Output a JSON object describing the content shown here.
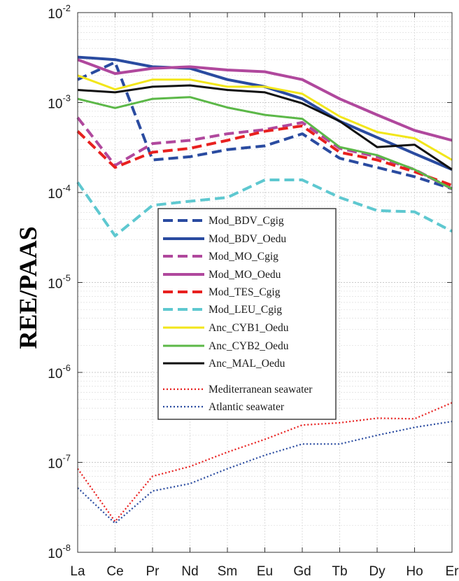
{
  "chart_data": {
    "type": "line",
    "xlabel": "",
    "ylabel": "REE/PAAS",
    "yscale": "log",
    "ylim": [
      1e-08,
      0.01
    ],
    "y_tick_labels": [
      {
        "base": "10",
        "exp": "-8",
        "value": 1e-08
      },
      {
        "base": "10",
        "exp": "-7",
        "value": 1e-07
      },
      {
        "base": "10",
        "exp": "-6",
        "value": 1e-06
      },
      {
        "base": "10",
        "exp": "-5",
        "value": 1e-05
      },
      {
        "base": "10",
        "exp": "-4",
        "value": 0.0001
      },
      {
        "base": "10",
        "exp": "-3",
        "value": 0.001
      },
      {
        "base": "10",
        "exp": "-2",
        "value": 0.01
      }
    ],
    "categories": [
      "La",
      "Ce",
      "Pr",
      "Nd",
      "Sm",
      "Eu",
      "Gd",
      "Tb",
      "Dy",
      "Ho",
      "Er"
    ],
    "grid": true,
    "legend_position": "center",
    "series": [
      {
        "name": "Mod_BDV_Cgig",
        "color": "#2a4ba0",
        "style": "dashed",
        "width": 4,
        "values": [
          0.0018,
          0.0028,
          0.00023,
          0.00025,
          0.0003,
          0.00033,
          0.00045,
          0.00024,
          0.00019,
          0.00015,
          0.00011
        ]
      },
      {
        "name": "Mod_BDV_Oedu",
        "color": "#2a4ba0",
        "style": "solid",
        "width": 4,
        "values": [
          0.0032,
          0.003,
          0.0025,
          0.0024,
          0.0018,
          0.0015,
          0.0011,
          0.00062,
          0.00041,
          0.00027,
          0.00018
        ]
      },
      {
        "name": "Mod_MO_Cgig",
        "color": "#b0489d",
        "style": "dashed",
        "width": 4,
        "values": [
          0.00068,
          0.0002,
          0.00035,
          0.00038,
          0.00045,
          0.0005,
          0.0006,
          0.00031,
          0.00025,
          0.00018,
          0.00011
        ]
      },
      {
        "name": "Mod_MO_Oedu",
        "color": "#b0489d",
        "style": "solid",
        "width": 4,
        "values": [
          0.003,
          0.0021,
          0.0024,
          0.0025,
          0.0023,
          0.0022,
          0.0018,
          0.0011,
          0.00073,
          0.00049,
          0.00038
        ]
      },
      {
        "name": "Mod_TES_Cgig",
        "color": "#e8201f",
        "style": "dashed",
        "width": 4,
        "values": [
          0.00048,
          0.00019,
          0.00028,
          0.00031,
          0.00038,
          0.00048,
          0.00055,
          0.00028,
          0.00023,
          0.00017,
          0.00012
        ]
      },
      {
        "name": "Mod_LEU_Cgig",
        "color": "#5ec8d0",
        "style": "dashed",
        "width": 4,
        "values": [
          0.00013,
          3.3e-05,
          7.2e-05,
          8e-05,
          8.8e-05,
          0.000138,
          0.000138,
          8.8e-05,
          6.3e-05,
          6.1e-05,
          3.7e-05
        ]
      },
      {
        "name": "Anc_CYB1_Oedu",
        "color": "#f2e61a",
        "style": "solid",
        "width": 3,
        "values": [
          0.002,
          0.0014,
          0.0018,
          0.0018,
          0.0015,
          0.0015,
          0.00125,
          0.0007,
          0.00047,
          0.0004,
          0.00023
        ]
      },
      {
        "name": "Anc_CYB2_Oedu",
        "color": "#5cb848",
        "style": "solid",
        "width": 3,
        "values": [
          0.0011,
          0.00087,
          0.0011,
          0.00115,
          0.00088,
          0.00073,
          0.00066,
          0.00032,
          0.00026,
          0.00018,
          0.00011
        ]
      },
      {
        "name": "Anc_MAL_Oedu",
        "color": "#111111",
        "style": "solid",
        "width": 3,
        "values": [
          0.00138,
          0.0013,
          0.0015,
          0.00155,
          0.00138,
          0.0013,
          0.00098,
          0.00062,
          0.00032,
          0.00034,
          0.00018
        ]
      },
      {
        "name": "Mediterranean seawater",
        "color": "#e8201f",
        "style": "dotted",
        "width": 2.2,
        "values": [
          8.5e-08,
          2.2e-08,
          7e-08,
          9e-08,
          1.3e-07,
          1.8e-07,
          2.6e-07,
          2.75e-07,
          3.1e-07,
          3.05e-07,
          4.6e-07
        ]
      },
      {
        "name": "Atlantic seawater",
        "color": "#2a4ba0",
        "style": "dotted",
        "width": 2.2,
        "values": [
          5.2e-08,
          2.1e-08,
          4.8e-08,
          5.8e-08,
          8.5e-08,
          1.2e-07,
          1.6e-07,
          1.6e-07,
          2e-07,
          2.45e-07,
          2.85e-07
        ]
      }
    ]
  }
}
